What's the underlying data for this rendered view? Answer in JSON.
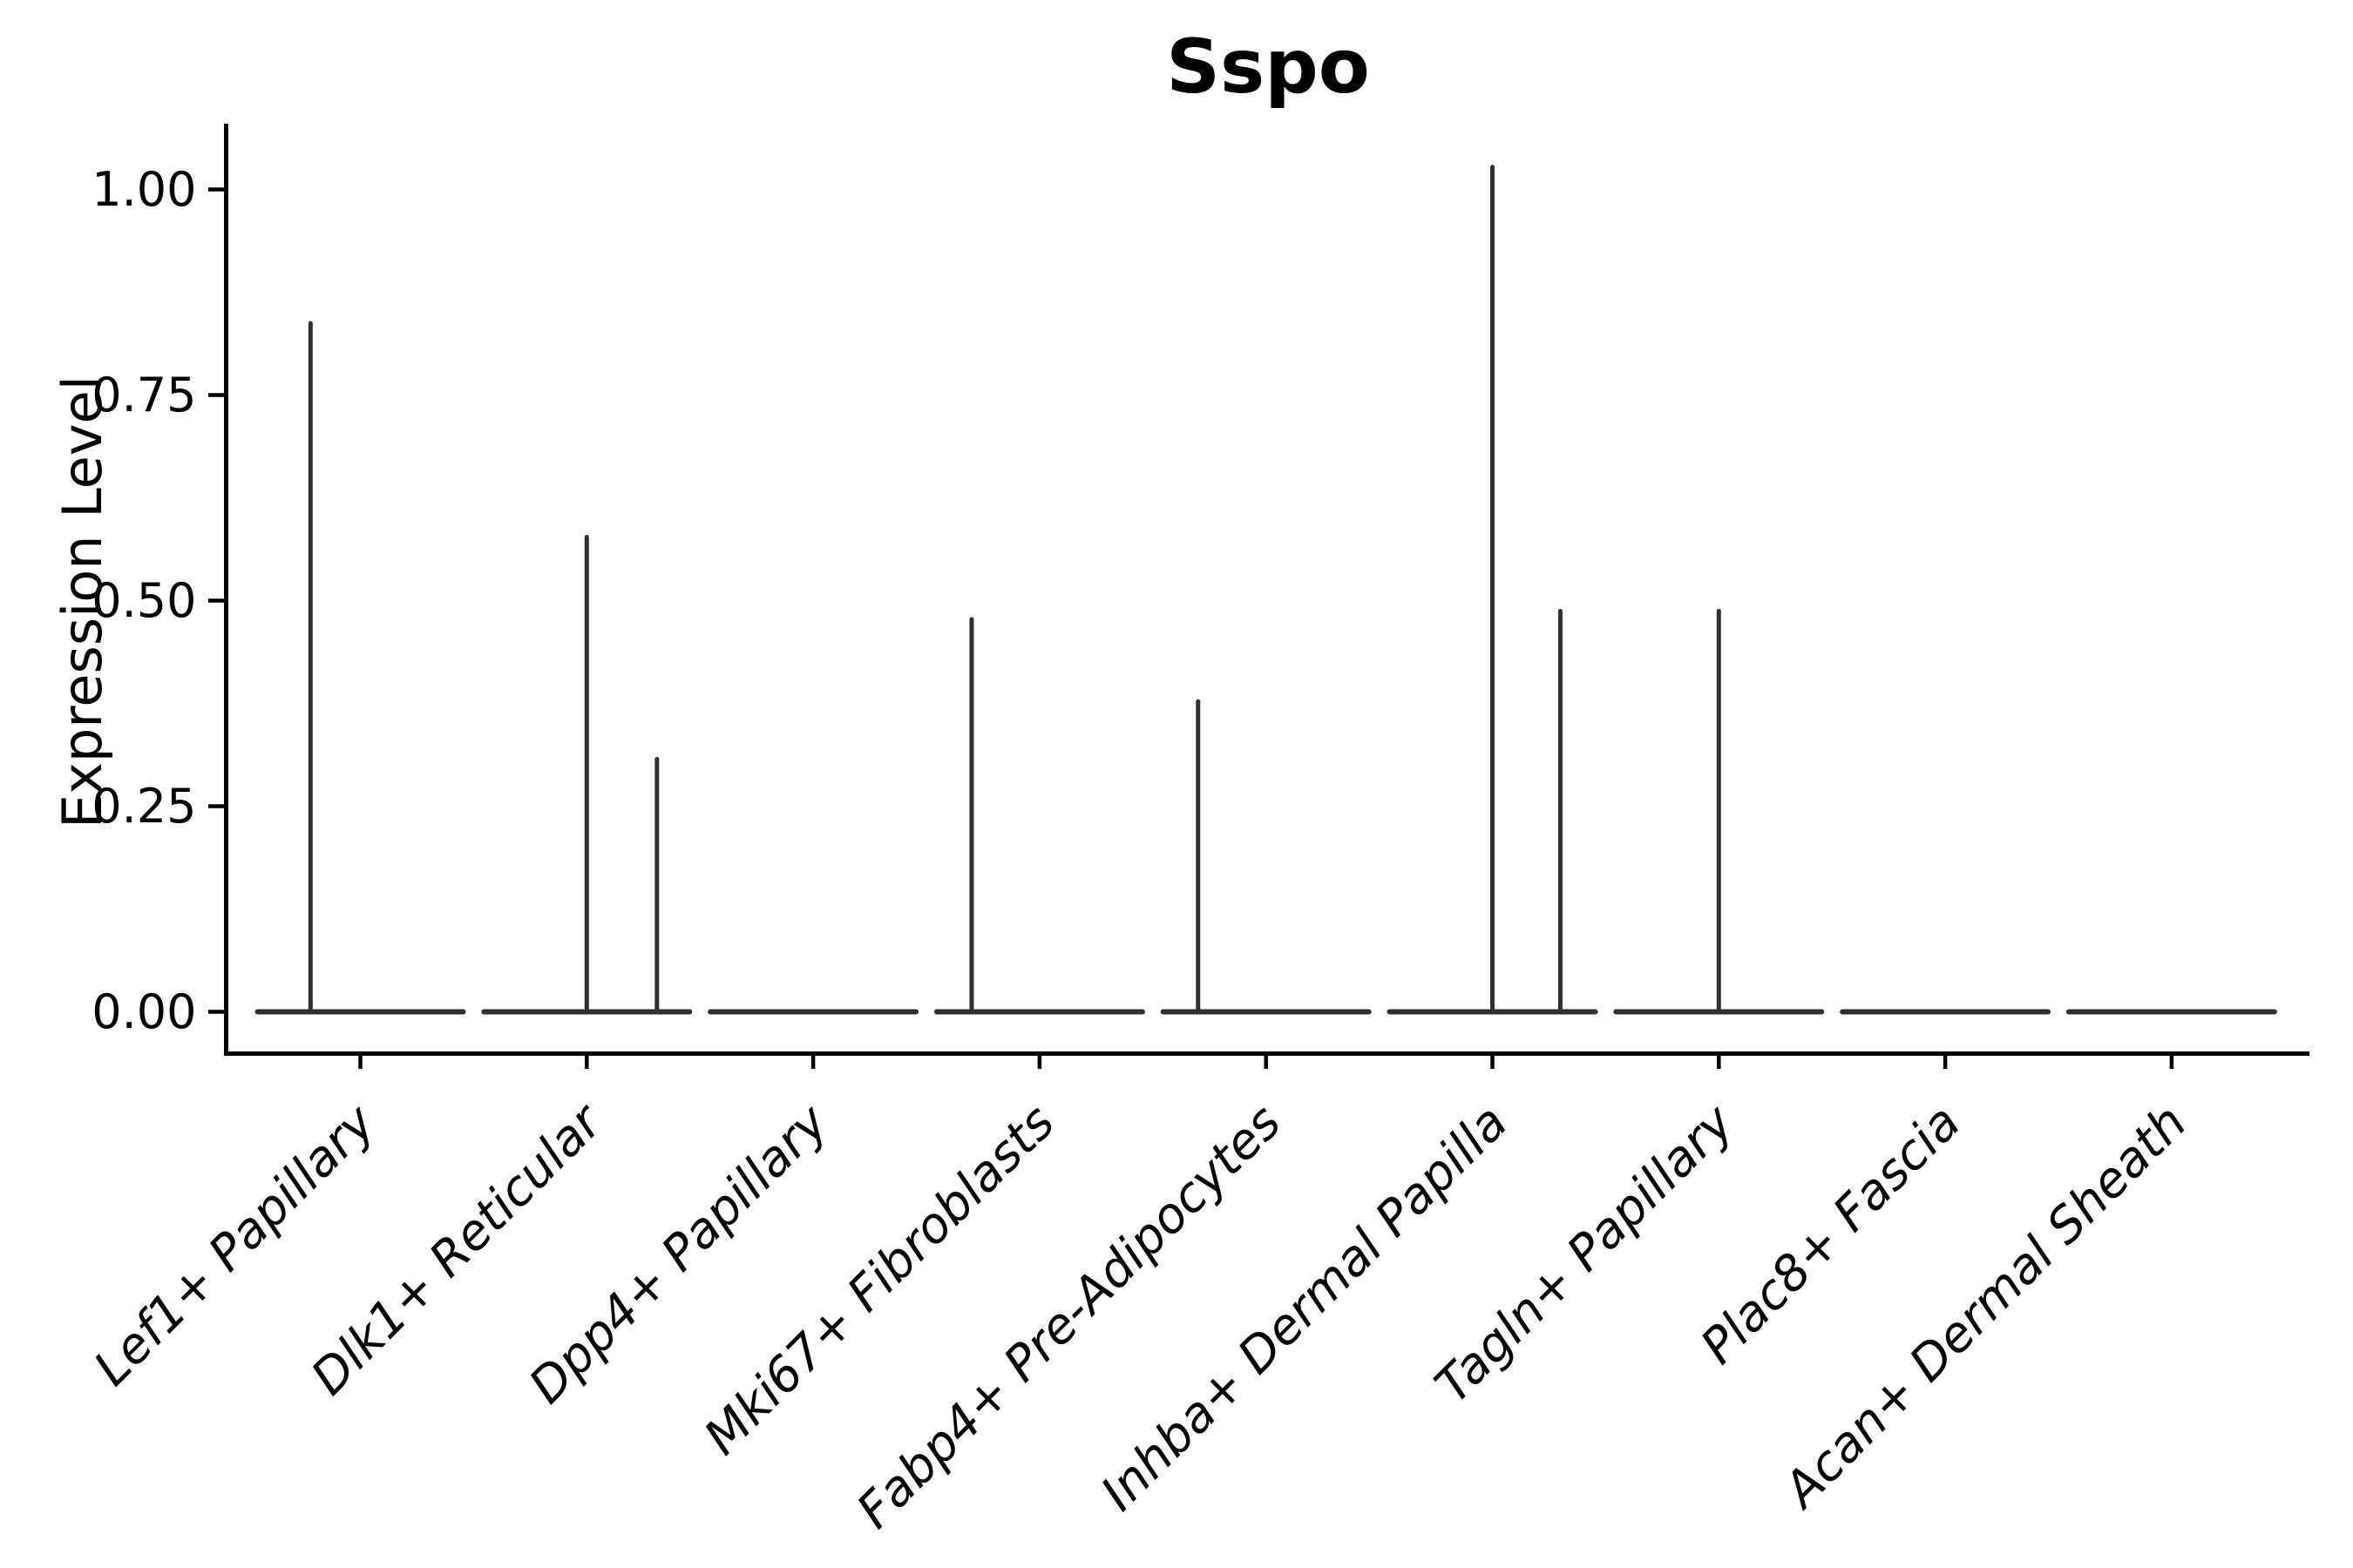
{
  "chart_data": {
    "type": "violin",
    "title": "Sspo",
    "ylabel": "Expression Level",
    "xlabel": "",
    "categories": [
      "Lef1+ Papillary",
      "Dlk1+ Reticular",
      "Dpp4+ Papillary",
      "Mki67+ Fibroblasts",
      "Fabp4+ Pre-Adipocytes",
      "Inhba+ Dermal Papilla",
      "Tagln+ Papillary",
      "Plac8+ Fascia",
      "Acan+ Dermal Sheath"
    ],
    "yticks": [
      0.0,
      0.25,
      0.5,
      0.75,
      1.0
    ],
    "ytick_labels": [
      "0.00",
      "0.25",
      "0.50",
      "0.75",
      "1.00"
    ],
    "ylim": [
      0,
      1.08
    ],
    "grid": false,
    "legend": "none",
    "x_label_rotation_deg": 45,
    "x_label_style": "italic",
    "violins": [
      {
        "category": "Lef1+ Papillary",
        "spikes": [
          {
            "x_offset_units": -0.22,
            "value": 0.84
          }
        ]
      },
      {
        "category": "Dlk1+ Reticular",
        "spikes": [
          {
            "x_offset_units": 0.0,
            "value": 0.58
          },
          {
            "x_offset_units": 0.31,
            "value": 0.31
          }
        ]
      },
      {
        "category": "Dpp4+ Papillary",
        "spikes": []
      },
      {
        "category": "Mki67+ Fibroblasts",
        "spikes": [
          {
            "x_offset_units": -0.3,
            "value": 0.48
          }
        ]
      },
      {
        "category": "Fabp4+ Pre-Adipocytes",
        "spikes": [
          {
            "x_offset_units": -0.3,
            "value": 0.38
          }
        ]
      },
      {
        "category": "Inhba+ Dermal Papilla",
        "spikes": [
          {
            "x_offset_units": 0.0,
            "value": 1.03
          },
          {
            "x_offset_units": 0.3,
            "value": 0.49
          }
        ]
      },
      {
        "category": "Tagln+ Papillary",
        "spikes": [
          {
            "x_offset_units": 0.0,
            "value": 0.49
          }
        ]
      },
      {
        "category": "Plac8+ Fascia",
        "spikes": []
      },
      {
        "category": "Acan+ Dermal Sheath",
        "spikes": []
      }
    ],
    "colors": {
      "violin_line": "#303030",
      "axis": "#000000",
      "text": "#000000",
      "background": "#ffffff"
    }
  }
}
